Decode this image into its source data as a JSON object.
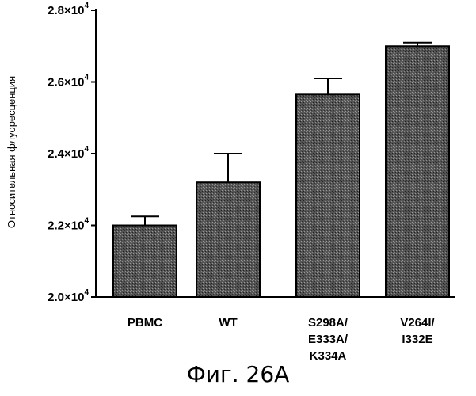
{
  "chart_data": {
    "type": "bar",
    "categories": [
      [
        "PBMC"
      ],
      [
        "WT"
      ],
      [
        "S298A/",
        "E333A/",
        "K334A"
      ],
      [
        "V264I/",
        "I332E"
      ]
    ],
    "values": [
      22000,
      23200,
      25650,
      27000
    ],
    "errors": [
      250,
      800,
      450,
      100
    ],
    "ylabel": "Относительная флуоресценция",
    "ylim": [
      20000,
      28000
    ],
    "yticks": [
      {
        "value": 20000,
        "mantissa": "2.0×10",
        "exp": "4"
      },
      {
        "value": 22000,
        "mantissa": "2.2×10",
        "exp": "4"
      },
      {
        "value": 24000,
        "mantissa": "2.4×10",
        "exp": "4"
      },
      {
        "value": 26000,
        "mantissa": "2.6×10",
        "exp": "4"
      },
      {
        "value": 28000,
        "mantissa": "2.8×10",
        "exp": "4"
      }
    ],
    "bar_color": "#4a4a4a",
    "grid": false
  },
  "caption": "Фиг. 26А"
}
